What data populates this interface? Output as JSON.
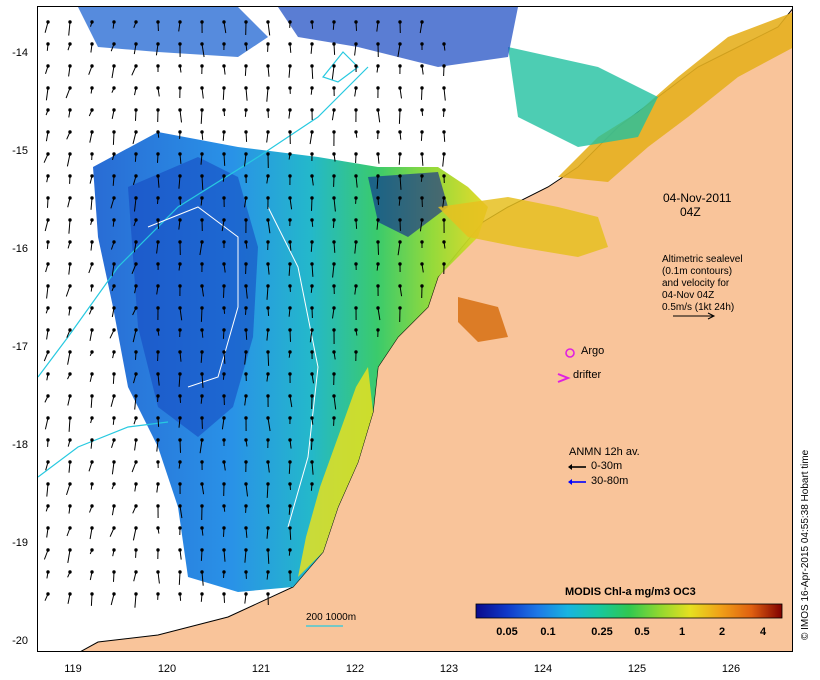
{
  "map": {
    "lon_ticks": [
      "119",
      "120",
      "121",
      "122",
      "123",
      "124",
      "125",
      "126"
    ],
    "lat_ticks": [
      "-14",
      "-15",
      "-16",
      "-17",
      "-18",
      "-19",
      "-20"
    ],
    "colors": {
      "land": "#f9c49a",
      "no_data": "#ffffff",
      "coast_line": "#000000",
      "contour": "#27c9e0",
      "sealevel_contour": "#ffffff"
    },
    "timestamp": {
      "date": "04-Nov-2011",
      "time": "04Z"
    },
    "altimetry_note": {
      "line1": "Altimetric sealevel",
      "line2": "(0.1m contours)",
      "line3": "and velocity for",
      "line4": "04-Nov 04Z",
      "line5": "0.5m/s (1kt 24h)"
    },
    "legend": {
      "argo": "Argo",
      "argo_color": "#e020e0",
      "drifter": "drifter",
      "drifter_color": "#e020e0",
      "anmn_title": "ANMN 12h av.",
      "anmn_shallow": "0-30m",
      "anmn_shallow_color": "#000000",
      "anmn_deep": "30-80m",
      "anmn_deep_color": "#0000ff"
    },
    "isobath_label": "200  1000m",
    "colorbar": {
      "title": "MODIS Chl-a mg/m3 OC3",
      "ticks": [
        "0.05",
        "0.1",
        "0.25",
        "0.5",
        "1",
        "2",
        "4"
      ],
      "colors": [
        "#0a0a8c",
        "#1038c8",
        "#1e78e6",
        "#18b4e0",
        "#18c8a0",
        "#30c850",
        "#90d830",
        "#e6e020",
        "#f0a018",
        "#e06010",
        "#b01e0c",
        "#800000"
      ]
    },
    "credit": "© IMOS 16-Apr-2015 04:55:38 Hobart time"
  }
}
